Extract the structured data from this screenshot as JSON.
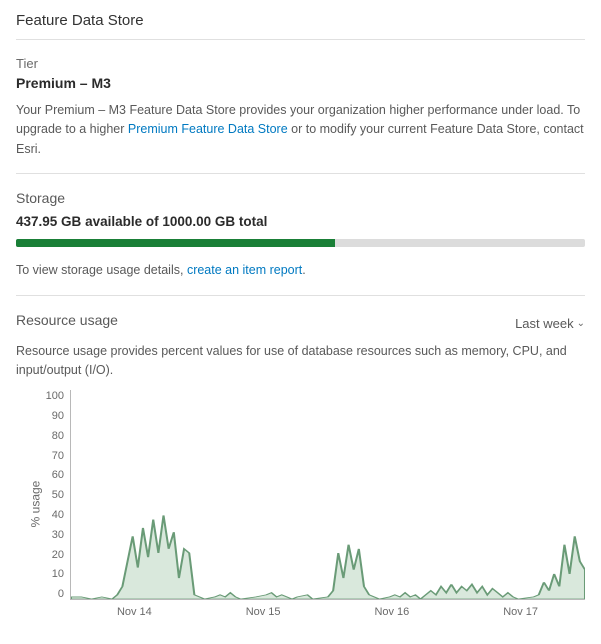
{
  "page_title": "Feature Data Store",
  "tier": {
    "label": "Tier",
    "value": "Premium – M3",
    "desc_pre": "Your Premium – M3 Feature Data Store provides your organization higher performance under load. To upgrade to a higher ",
    "link_text": "Premium Feature Data Store",
    "desc_post": " or to modify your current Feature Data Store, contact Esri."
  },
  "storage": {
    "heading": "Storage",
    "available": "437.95 GB",
    "of_word": "available of",
    "total": "1000.00 GB total",
    "percent_used": 56,
    "fill_color": "#1a7f37",
    "track_color": "#dcdcdc",
    "detail_pre": "To view storage usage details, ",
    "detail_link": "create an item report",
    "detail_post": "."
  },
  "usage": {
    "heading": "Resource usage",
    "range_label": "Last week",
    "desc": "Resource usage provides percent values for use of database resources such as memory, CPU, and input/output (I/O).",
    "ylabel": "% usage",
    "ylim": [
      0,
      100
    ],
    "ytick_step": 10,
    "yticks": [
      "100",
      "90",
      "80",
      "70",
      "60",
      "50",
      "40",
      "30",
      "20",
      "10",
      "0"
    ],
    "xticks": [
      "Nov 14",
      "Nov 15",
      "Nov 16",
      "Nov 17"
    ],
    "area_fill": "#d9e8dc",
    "area_stroke": "#6a9b77",
    "background": "#ffffff",
    "series": [
      [
        0,
        1
      ],
      [
        2,
        1
      ],
      [
        4,
        0
      ],
      [
        6,
        1
      ],
      [
        8,
        0
      ],
      [
        9,
        2
      ],
      [
        10,
        6
      ],
      [
        11,
        18
      ],
      [
        12,
        30
      ],
      [
        13,
        15
      ],
      [
        14,
        34
      ],
      [
        15,
        20
      ],
      [
        16,
        38
      ],
      [
        17,
        22
      ],
      [
        18,
        40
      ],
      [
        19,
        24
      ],
      [
        20,
        32
      ],
      [
        21,
        10
      ],
      [
        22,
        24
      ],
      [
        23,
        22
      ],
      [
        24,
        2
      ],
      [
        25,
        1
      ],
      [
        26,
        0
      ],
      [
        28,
        1
      ],
      [
        29,
        2
      ],
      [
        30,
        1
      ],
      [
        31,
        3
      ],
      [
        32,
        1
      ],
      [
        33,
        0
      ],
      [
        36,
        1
      ],
      [
        38,
        2
      ],
      [
        39,
        3
      ],
      [
        40,
        1
      ],
      [
        41,
        2
      ],
      [
        42,
        1
      ],
      [
        43,
        0
      ],
      [
        44,
        1
      ],
      [
        46,
        2
      ],
      [
        47,
        0
      ],
      [
        50,
        1
      ],
      [
        51,
        4
      ],
      [
        52,
        22
      ],
      [
        53,
        10
      ],
      [
        54,
        26
      ],
      [
        55,
        14
      ],
      [
        56,
        24
      ],
      [
        57,
        6
      ],
      [
        58,
        2
      ],
      [
        59,
        1
      ],
      [
        60,
        0
      ],
      [
        62,
        1
      ],
      [
        63,
        2
      ],
      [
        64,
        1
      ],
      [
        65,
        3
      ],
      [
        66,
        1
      ],
      [
        67,
        2
      ],
      [
        68,
        0
      ],
      [
        70,
        4
      ],
      [
        71,
        2
      ],
      [
        72,
        6
      ],
      [
        73,
        3
      ],
      [
        74,
        7
      ],
      [
        75,
        3
      ],
      [
        76,
        6
      ],
      [
        77,
        4
      ],
      [
        78,
        7
      ],
      [
        79,
        3
      ],
      [
        80,
        6
      ],
      [
        81,
        2
      ],
      [
        82,
        5
      ],
      [
        83,
        3
      ],
      [
        84,
        1
      ],
      [
        85,
        3
      ],
      [
        86,
        1
      ],
      [
        87,
        0
      ],
      [
        90,
        1
      ],
      [
        91,
        2
      ],
      [
        92,
        8
      ],
      [
        93,
        4
      ],
      [
        94,
        12
      ],
      [
        95,
        6
      ],
      [
        96,
        26
      ],
      [
        97,
        12
      ],
      [
        98,
        30
      ],
      [
        99,
        18
      ],
      [
        100,
        14
      ]
    ]
  }
}
